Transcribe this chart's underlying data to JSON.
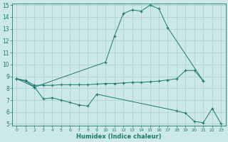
{
  "line1_x": [
    0,
    1,
    2,
    10,
    11,
    12,
    13,
    14,
    15,
    16,
    17,
    21
  ],
  "line1_y": [
    8.8,
    8.6,
    8.1,
    10.2,
    12.4,
    14.3,
    14.6,
    14.5,
    15.0,
    14.7,
    13.1,
    8.6
  ],
  "line2_x": [
    0,
    1,
    2,
    3,
    4,
    5,
    6,
    7,
    8,
    9,
    10,
    11,
    12,
    13,
    14,
    15,
    16,
    17,
    18,
    19,
    20,
    21
  ],
  "line2_y": [
    8.8,
    8.65,
    8.25,
    8.25,
    8.25,
    8.3,
    8.3,
    8.3,
    8.3,
    8.35,
    8.4,
    8.4,
    8.45,
    8.5,
    8.5,
    8.55,
    8.6,
    8.7,
    8.8,
    9.5,
    9.5,
    8.6
  ],
  "line3_x": [
    0,
    2,
    3,
    4,
    5,
    6,
    7,
    8,
    9,
    18,
    19,
    20,
    21,
    22,
    23
  ],
  "line3_y": [
    8.8,
    8.1,
    7.1,
    7.2,
    7.0,
    6.8,
    6.6,
    6.5,
    7.5,
    6.1,
    5.9,
    5.2,
    5.1,
    6.3,
    5.0
  ],
  "color": "#1a7a6e",
  "bg_color": "#cce8e8",
  "grid_color": "#aacece",
  "ylim": [
    5,
    15
  ],
  "xlim": [
    -0.5,
    23.5
  ],
  "yticks": [
    5,
    6,
    7,
    8,
    9,
    10,
    11,
    12,
    13,
    14,
    15
  ],
  "xticks": [
    0,
    1,
    2,
    3,
    4,
    5,
    6,
    7,
    8,
    9,
    10,
    11,
    12,
    13,
    14,
    15,
    16,
    17,
    18,
    19,
    20,
    21,
    22,
    23
  ],
  "xlabel": "Humidex (Indice chaleur)"
}
